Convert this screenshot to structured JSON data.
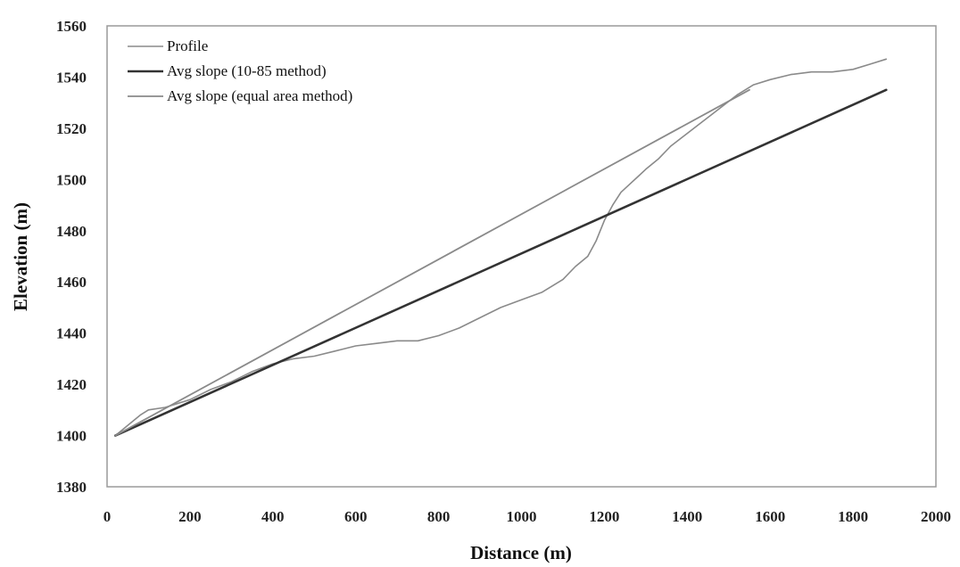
{
  "chart_data": {
    "type": "line",
    "xlabel": "Distance (m)",
    "ylabel": "Elevation (m)",
    "xlim": [
      0,
      2000
    ],
    "ylim": [
      1380,
      1560
    ],
    "xticks": [
      "0",
      "200",
      "400",
      "600",
      "800",
      "1000",
      "1200",
      "1400",
      "1600",
      "1800",
      "2000"
    ],
    "yticks": [
      "1380",
      "1400",
      "1420",
      "1440",
      "1460",
      "1480",
      "1500",
      "1520",
      "1540",
      "1560"
    ],
    "grid": false,
    "legend_position": "top-left",
    "series": [
      {
        "name": "Profile",
        "color": "#8a8a8a",
        "stroke_width": 1.6,
        "x": [
          20,
          50,
          80,
          100,
          140,
          200,
          250,
          300,
          350,
          400,
          450,
          500,
          550,
          600,
          650,
          700,
          750,
          800,
          850,
          900,
          950,
          1000,
          1050,
          1100,
          1130,
          1160,
          1180,
          1200,
          1220,
          1240,
          1260,
          1280,
          1300,
          1330,
          1360,
          1400,
          1440,
          1480,
          1520,
          1560,
          1600,
          1650,
          1700,
          1750,
          1800,
          1840,
          1880
        ],
        "y": [
          1400,
          1404,
          1408,
          1410,
          1411,
          1414,
          1418,
          1421,
          1425,
          1428,
          1430,
          1431,
          1433,
          1435,
          1436,
          1437,
          1437,
          1439,
          1442,
          1446,
          1450,
          1453,
          1456,
          1461,
          1466,
          1470,
          1476,
          1484,
          1490,
          1495,
          1498,
          1501,
          1504,
          1508,
          1513,
          1518,
          1523,
          1528,
          1533,
          1537,
          1539,
          1541,
          1542,
          1542,
          1543,
          1545,
          1547
        ]
      },
      {
        "name": "Avg slope (10-85 method)",
        "color": "#333333",
        "stroke_width": 2.6,
        "x": [
          20,
          1880
        ],
        "y": [
          1400,
          1535
        ]
      },
      {
        "name": "Avg slope (equal area method)",
        "color": "#8a8a8a",
        "stroke_width": 1.8,
        "x": [
          20,
          1550
        ],
        "y": [
          1400,
          1535
        ]
      }
    ]
  }
}
